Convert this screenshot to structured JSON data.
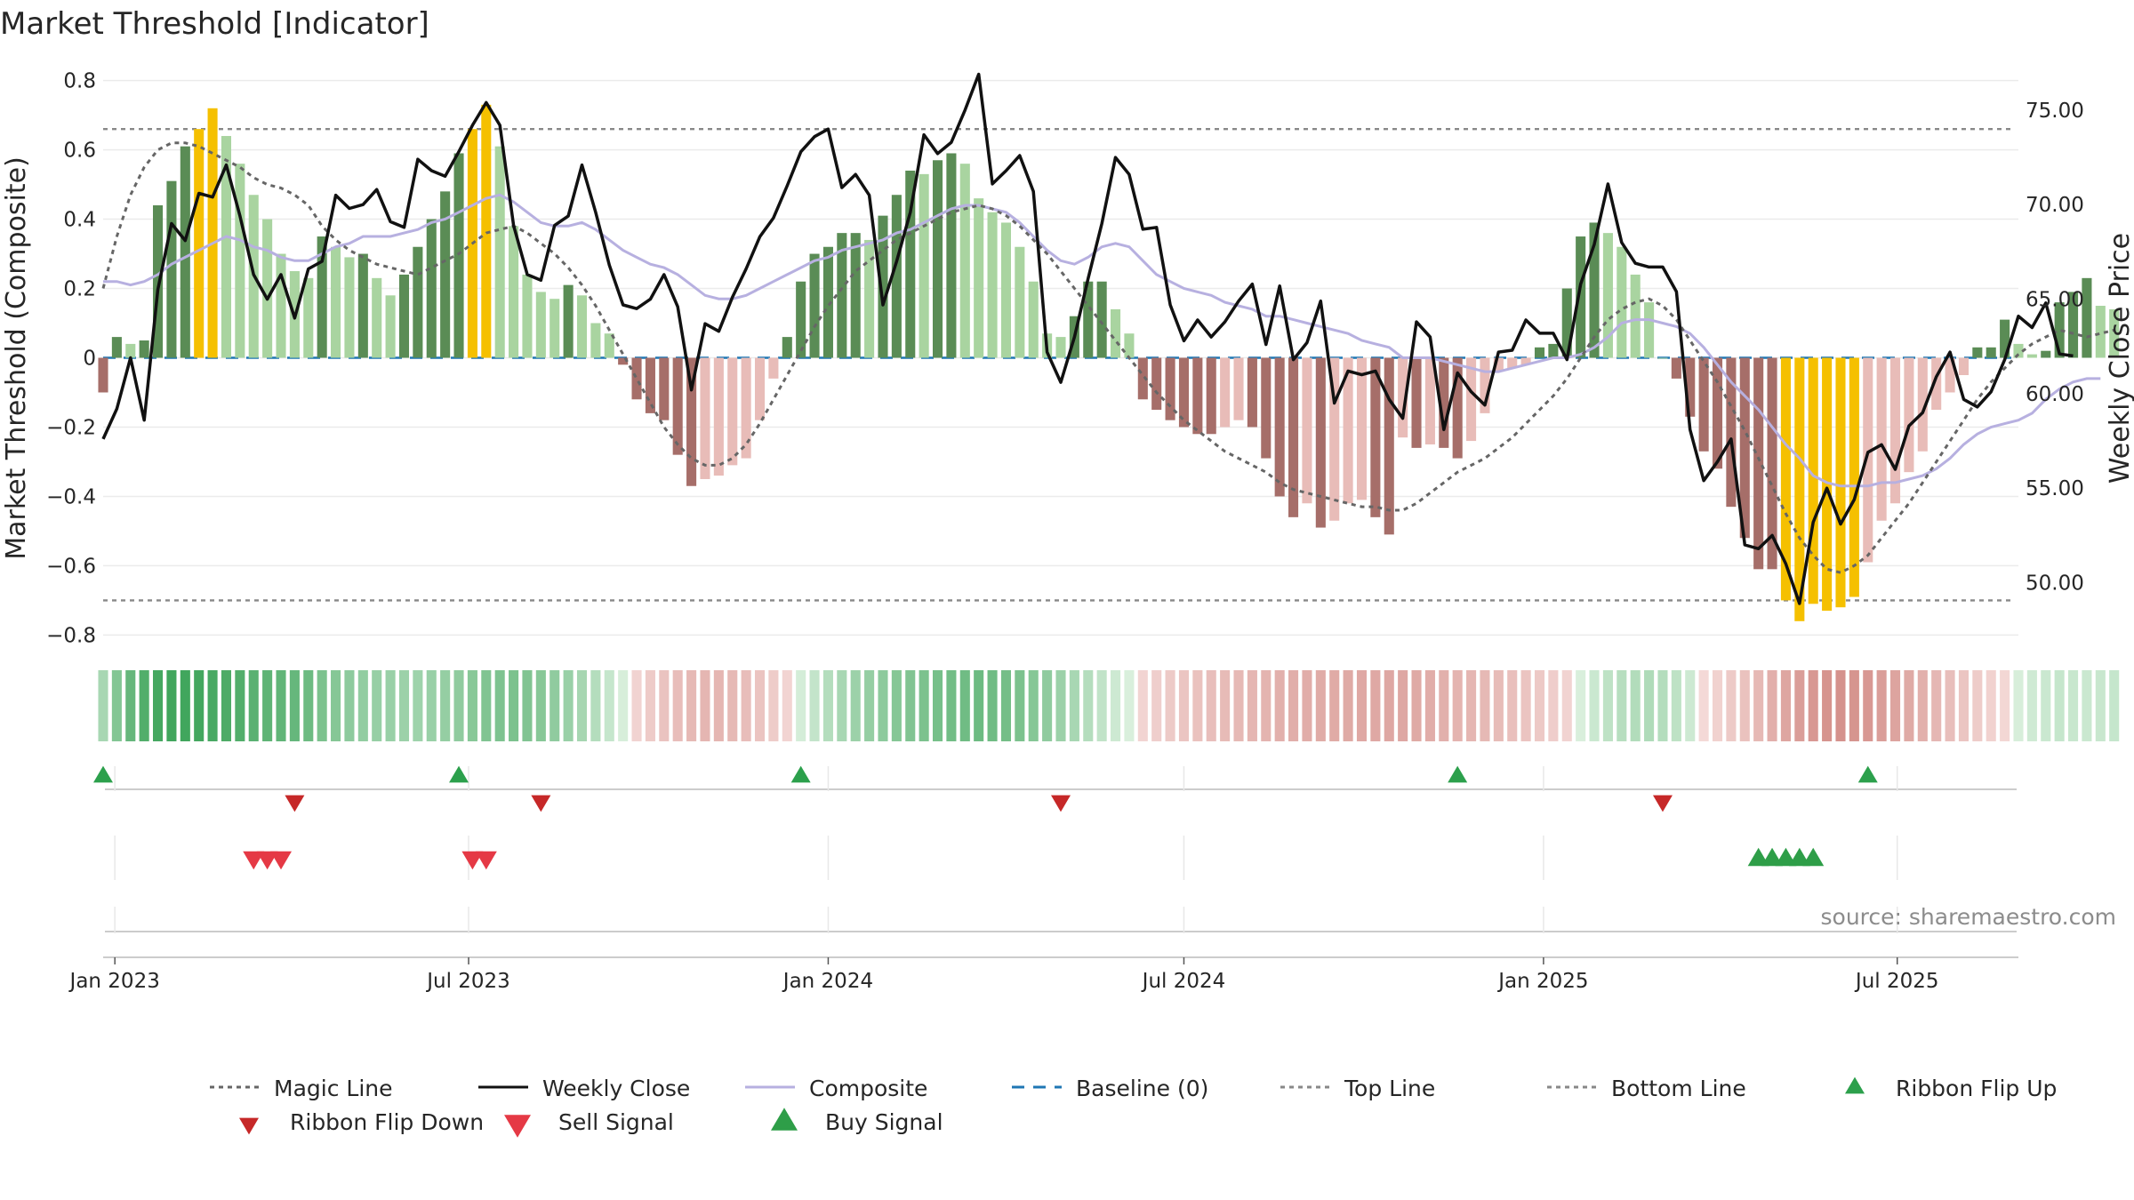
{
  "chart_data": {
    "type": "bar",
    "title": "Market Threshold [Indicator]",
    "ylabel_left": "Market Threshold (Composite)",
    "ylabel_right": "Weekly Close Price",
    "source": "source: sharemaestro.com",
    "x_start": "2022-12-26",
    "x_end": "2025-09-01",
    "x_tick_labels": [
      {
        "date": "2023-01-01",
        "label": "Jan 2023"
      },
      {
        "date": "2023-07-01",
        "label": "Jul 2023"
      },
      {
        "date": "2024-01-01",
        "label": "Jan 2024"
      },
      {
        "date": "2024-07-01",
        "label": "Jul 2024"
      },
      {
        "date": "2025-01-01",
        "label": "Jan 2025"
      },
      {
        "date": "2025-07-01",
        "label": "Jul 2025"
      }
    ],
    "ylim_left": [
      -0.84,
      0.84
    ],
    "yticks_left": [
      {
        "v": 0.8,
        "label": "0.8"
      },
      {
        "v": 0.6,
        "label": "0.6"
      },
      {
        "v": 0.4,
        "label": "0.4"
      },
      {
        "v": 0.2,
        "label": "0.2"
      },
      {
        "v": 0,
        "label": "0"
      },
      {
        "v": -0.2,
        "label": "−0.2"
      },
      {
        "v": -0.4,
        "label": "−0.4"
      },
      {
        "v": -0.6,
        "label": "−0.6"
      },
      {
        "v": -0.8,
        "label": "−0.8"
      }
    ],
    "ylim_right": [
      46.5,
      77.3
    ],
    "yticks_right": [
      {
        "v": 75,
        "label": "75.00"
      },
      {
        "v": 70,
        "label": "70.00"
      },
      {
        "v": 65,
        "label": "65.00"
      },
      {
        "v": 60,
        "label": "60.00"
      },
      {
        "v": 55,
        "label": "55.00"
      },
      {
        "v": 50,
        "label": "50.00"
      }
    ],
    "top_line": 0.66,
    "bottom_line": -0.7,
    "baseline": 0,
    "composite_bars": [
      -0.1,
      0.06,
      0.04,
      0.05,
      0.44,
      0.51,
      0.61,
      0.66,
      0.72,
      0.64,
      0.56,
      0.47,
      0.4,
      0.3,
      0.25,
      0.23,
      0.35,
      0.32,
      0.29,
      0.3,
      0.23,
      0.18,
      0.24,
      0.32,
      0.4,
      0.48,
      0.59,
      0.66,
      0.73,
      0.61,
      0.38,
      0.24,
      0.19,
      0.17,
      0.21,
      0.18,
      0.1,
      0.07,
      -0.02,
      -0.12,
      -0.16,
      -0.18,
      -0.28,
      -0.37,
      -0.35,
      -0.34,
      -0.31,
      -0.29,
      -0.18,
      -0.06,
      0.06,
      0.22,
      0.3,
      0.32,
      0.36,
      0.36,
      0.34,
      0.41,
      0.47,
      0.54,
      0.53,
      0.57,
      0.59,
      0.56,
      0.46,
      0.42,
      0.39,
      0.32,
      0.22,
      0.07,
      0.06,
      0.12,
      0.22,
      0.22,
      0.14,
      0.07,
      -0.12,
      -0.15,
      -0.18,
      -0.2,
      -0.22,
      -0.22,
      -0.2,
      -0.18,
      -0.2,
      -0.29,
      -0.4,
      -0.46,
      -0.42,
      -0.49,
      -0.47,
      -0.42,
      -0.41,
      -0.46,
      -0.51,
      -0.23,
      -0.26,
      -0.25,
      -0.26,
      -0.29,
      -0.24,
      -0.16,
      -0.04,
      -0.03,
      -0.02,
      0.03,
      0.04,
      0.2,
      0.35,
      0.39,
      0.36,
      0.32,
      0.24,
      0.16,
      0,
      -0.06,
      -0.17,
      -0.27,
      -0.32,
      -0.43,
      -0.52,
      -0.61,
      -0.61,
      -0.7,
      -0.76,
      -0.71,
      -0.73,
      -0.72,
      -0.69,
      -0.59,
      -0.47,
      -0.42,
      -0.33,
      -0.27,
      -0.15,
      -0.1,
      -0.05,
      0.03,
      0.03,
      0.11,
      0.04,
      0.01,
      0.02,
      0.16,
      0.19,
      0.23,
      0.15,
      0.14
    ],
    "weekly_close": [
      57.6,
      59.2,
      61.9,
      58.6,
      65.5,
      69.0,
      68.1,
      70.6,
      70.4,
      72.1,
      69.4,
      66.3,
      65.0,
      66.3,
      64.0,
      66.6,
      67.0,
      70.5,
      69.8,
      70.0,
      70.8,
      69.1,
      68.8,
      72.4,
      71.8,
      71.5,
      72.8,
      74.2,
      75.4,
      74.2,
      68.9,
      66.3,
      66.0,
      68.9,
      69.4,
      72.1,
      69.6,
      66.8,
      64.7,
      64.5,
      65.0,
      66.3,
      64.6,
      60.2,
      63.7,
      63.3,
      65.1,
      66.6,
      68.3,
      69.3,
      71.0,
      72.8,
      73.6,
      74.0,
      70.9,
      71.6,
      70.5,
      64.7,
      67.0,
      69.6,
      73.7,
      72.7,
      73.3,
      75.0,
      76.9,
      71.1,
      71.8,
      72.6,
      70.7,
      62.2,
      60.6,
      63.0,
      66.1,
      69.0,
      72.5,
      71.6,
      68.7,
      68.8,
      64.7,
      62.8,
      63.9,
      63.0,
      63.8,
      64.9,
      65.8,
      62.6,
      65.7,
      61.8,
      62.7,
      64.9,
      59.5,
      61.2,
      61.0,
      61.2,
      59.7,
      58.7,
      63.8,
      63.0,
      58.1,
      61.1,
      60.1,
      59.4,
      62.2,
      62.3,
      63.9,
      63.2,
      63.2,
      61.8,
      65.8,
      67.9,
      71.1,
      68.0,
      66.9,
      66.7,
      66.7,
      65.4,
      58.1,
      55.4,
      56.4,
      57.6,
      52.0,
      51.8,
      52.5,
      51.0,
      48.9,
      53.2,
      55.0,
      53.1,
      54.4,
      56.9,
      57.3,
      56.0,
      58.3,
      59.0,
      60.9,
      62.2,
      59.7,
      59.3,
      60.1,
      61.8,
      64.1,
      63.5,
      64.8,
      62.1,
      62.0
    ],
    "magic_line": [
      0.2,
      0.35,
      0.47,
      0.55,
      0.6,
      0.62,
      0.62,
      0.61,
      0.59,
      0.57,
      0.55,
      0.52,
      0.5,
      0.49,
      0.47,
      0.44,
      0.38,
      0.34,
      0.31,
      0.29,
      0.27,
      0.26,
      0.25,
      0.24,
      0.26,
      0.28,
      0.3,
      0.33,
      0.36,
      0.37,
      0.38,
      0.36,
      0.33,
      0.3,
      0.26,
      0.21,
      0.15,
      0.08,
      0.01,
      -0.06,
      -0.13,
      -0.2,
      -0.25,
      -0.29,
      -0.31,
      -0.31,
      -0.29,
      -0.25,
      -0.19,
      -0.12,
      -0.05,
      0.02,
      0.09,
      0.15,
      0.2,
      0.25,
      0.28,
      0.31,
      0.34,
      0.36,
      0.38,
      0.4,
      0.42,
      0.43,
      0.44,
      0.43,
      0.41,
      0.38,
      0.34,
      0.3,
      0.25,
      0.2,
      0.15,
      0.1,
      0.05,
      0.0,
      -0.05,
      -0.1,
      -0.14,
      -0.18,
      -0.21,
      -0.24,
      -0.27,
      -0.29,
      -0.31,
      -0.33,
      -0.36,
      -0.38,
      -0.39,
      -0.4,
      -0.41,
      -0.42,
      -0.43,
      -0.43,
      -0.44,
      -0.44,
      -0.42,
      -0.39,
      -0.36,
      -0.33,
      -0.31,
      -0.29,
      -0.26,
      -0.23,
      -0.19,
      -0.15,
      -0.11,
      -0.06,
      0.0,
      0.06,
      0.11,
      0.14,
      0.16,
      0.17,
      0.15,
      0.11,
      0.05,
      -0.01,
      -0.07,
      -0.14,
      -0.21,
      -0.29,
      -0.37,
      -0.45,
      -0.52,
      -0.57,
      -0.61,
      -0.62,
      -0.6,
      -0.57,
      -0.52,
      -0.47,
      -0.42,
      -0.36,
      -0.3,
      -0.24,
      -0.18,
      -0.12,
      -0.07,
      -0.03,
      0.01,
      0.04,
      0.06,
      0.08,
      0.07,
      0.06,
      0.07,
      0.08
    ],
    "composite_line": [
      0.22,
      0.22,
      0.21,
      0.22,
      0.24,
      0.27,
      0.29,
      0.31,
      0.33,
      0.35,
      0.34,
      0.32,
      0.31,
      0.29,
      0.28,
      0.28,
      0.3,
      0.32,
      0.33,
      0.35,
      0.35,
      0.35,
      0.36,
      0.37,
      0.39,
      0.4,
      0.42,
      0.44,
      0.46,
      0.47,
      0.45,
      0.42,
      0.39,
      0.38,
      0.38,
      0.39,
      0.37,
      0.34,
      0.31,
      0.29,
      0.27,
      0.26,
      0.24,
      0.21,
      0.18,
      0.17,
      0.17,
      0.18,
      0.2,
      0.22,
      0.24,
      0.26,
      0.28,
      0.29,
      0.31,
      0.32,
      0.33,
      0.34,
      0.36,
      0.37,
      0.39,
      0.41,
      0.43,
      0.44,
      0.44,
      0.43,
      0.42,
      0.39,
      0.35,
      0.31,
      0.28,
      0.27,
      0.29,
      0.32,
      0.33,
      0.32,
      0.28,
      0.24,
      0.22,
      0.2,
      0.19,
      0.18,
      0.16,
      0.15,
      0.14,
      0.12,
      0.12,
      0.11,
      0.1,
      0.09,
      0.08,
      0.07,
      0.05,
      0.04,
      0.03,
      0.0,
      0.0,
      0.0,
      -0.01,
      -0.02,
      -0.03,
      -0.04,
      -0.04,
      -0.03,
      -0.02,
      -0.01,
      0.0,
      0.0,
      0.01,
      0.03,
      0.06,
      0.1,
      0.11,
      0.11,
      0.1,
      0.09,
      0.07,
      0.03,
      -0.02,
      -0.07,
      -0.11,
      -0.15,
      -0.2,
      -0.25,
      -0.29,
      -0.34,
      -0.36,
      -0.37,
      -0.37,
      -0.37,
      -0.36,
      -0.36,
      -0.35,
      -0.34,
      -0.32,
      -0.29,
      -0.25,
      -0.22,
      -0.2,
      -0.19,
      -0.18,
      -0.16,
      -0.12,
      -0.09,
      -0.07,
      -0.06,
      -0.06
    ],
    "ribbon_flip_up": [
      "2022-12-26",
      "2023-06-26",
      "2023-12-18",
      "2024-11-18",
      "2025-06-16"
    ],
    "ribbon_flip_down": [
      "2023-04-03",
      "2023-08-07",
      "2024-04-29",
      "2025-03-03"
    ],
    "sell_signal": [
      "2023-03-13",
      "2023-03-20",
      "2023-03-27",
      "2023-07-03",
      "2023-07-10"
    ],
    "buy_signal": [
      "2025-04-21",
      "2025-04-28",
      "2025-05-05",
      "2025-05-12",
      "2025-05-19"
    ],
    "colors": {
      "pos_strong": "#5a8c55",
      "pos_weak": "#a9d4a0",
      "neg_strong": "#a66e69",
      "neg_weak": "#e8bcb8",
      "extreme": "#f5c000",
      "close": "#111111",
      "composite": "#b7b0e0",
      "magic": "#666666",
      "baseline": "#1f77b4",
      "thresholds": "#888888",
      "ribbon_flip_up": "#2ca04c",
      "ribbon_flip_down": "#c62828",
      "sell": "#e53945",
      "buy": "#2e9e48"
    },
    "legend": [
      {
        "label": "Magic Line",
        "marker": "dotted-line"
      },
      {
        "label": "Weekly Close",
        "marker": "solid-line"
      },
      {
        "label": "Composite",
        "marker": "lavender-line"
      },
      {
        "label": "Baseline (0)",
        "marker": "dashed-line"
      },
      {
        "label": "Top Line",
        "marker": "gray-dotted-line"
      },
      {
        "label": "Bottom Line",
        "marker": "gray-dotted-line"
      },
      {
        "label": "Ribbon Flip Up",
        "marker": "green-triangle-up"
      },
      {
        "label": "Ribbon Flip Down",
        "marker": "red-triangle-down"
      },
      {
        "label": "Sell Signal",
        "marker": "red-triangle-down"
      },
      {
        "label": "Buy Signal",
        "marker": "green-triangle-up"
      }
    ]
  }
}
